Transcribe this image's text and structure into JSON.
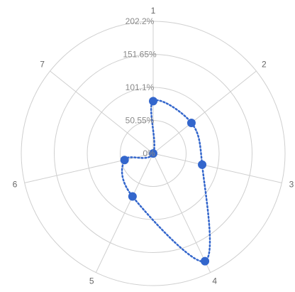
{
  "chart_data": {
    "type": "radar",
    "title": "",
    "categories": [
      "1",
      "2",
      "3",
      "4",
      "5",
      "6",
      "7"
    ],
    "axis": {
      "min": 0,
      "max": 202.2,
      "ticks": [
        0,
        50.55,
        101.1,
        151.65,
        202.2
      ],
      "tick_labels": [
        "0%",
        "50.55%",
        "101.1%",
        "151.65%",
        "202.2%"
      ],
      "grid": true
    },
    "series": [
      {
        "values": [
          80,
          75,
          77,
          183,
          73,
          45,
          0
        ],
        "color": "#3366cc",
        "line_style": "dotted",
        "curve": "smooth"
      }
    ]
  }
}
